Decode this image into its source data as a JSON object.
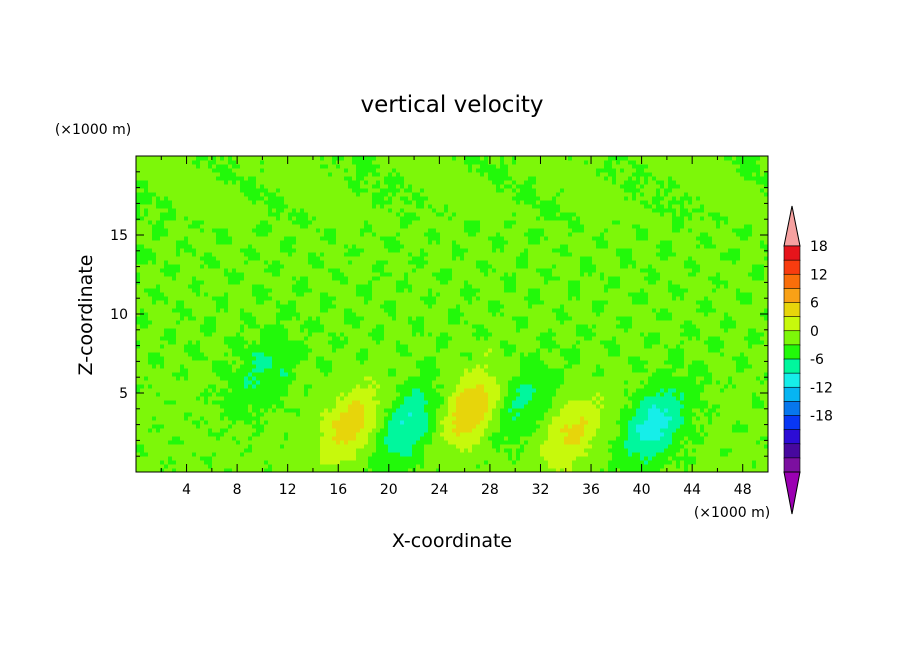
{
  "chart_data": {
    "type": "heatmap",
    "title": "vertical velocity",
    "xlabel": "X-coordinate",
    "ylabel": "Z-coordinate",
    "x_unit": "(×1000 m)",
    "y_unit": "(×1000 m)",
    "xlim": [
      0,
      50
    ],
    "ylim": [
      0,
      20
    ],
    "x_ticks": [
      "4",
      "8",
      "12",
      "16",
      "20",
      "24",
      "28",
      "32",
      "36",
      "40",
      "44",
      "48"
    ],
    "y_ticks": [
      "5",
      "10",
      "15"
    ],
    "colorbar": {
      "labels": [
        "18",
        "12",
        "6",
        "0",
        "-6",
        "-12",
        "-18"
      ],
      "levels": [
        21,
        18,
        15,
        12,
        9,
        6,
        3,
        0,
        -3,
        -6,
        -9,
        -12,
        -15,
        -18,
        -21
      ],
      "colors": [
        "#f6a1a0",
        "#e6141b",
        "#f83c0f",
        "#f96e0a",
        "#f9a116",
        "#e7d50b",
        "#c7f90c",
        "#7df709",
        "#22f90a",
        "#00f79d",
        "#16eee9",
        "#06b5f2",
        "#0777ed",
        "#0837f4",
        "#2c0cd5",
        "#47089e",
        "#7c0fa0",
        "#9b00b2"
      ],
      "over_color": "#f6a1a0",
      "under_color": "#9b00b2"
    },
    "features": [
      {
        "x": 17.0,
        "z": 3.0,
        "w": 7.5,
        "kind": "updraft"
      },
      {
        "x": 26.5,
        "z": 4.0,
        "w": 8.5,
        "kind": "updraft"
      },
      {
        "x": 34.5,
        "z": 2.5,
        "w": 6.0,
        "kind": "updraft"
      },
      {
        "x": 10.0,
        "z": 6.5,
        "w": -4.0,
        "kind": "downdraft"
      },
      {
        "x": 21.5,
        "z": 3.0,
        "w": -7.0,
        "kind": "downdraft"
      },
      {
        "x": 30.5,
        "z": 4.5,
        "w": -4.5,
        "kind": "downdraft"
      },
      {
        "x": 41.0,
        "z": 3.0,
        "w": -8.0,
        "kind": "downdraft"
      }
    ]
  }
}
